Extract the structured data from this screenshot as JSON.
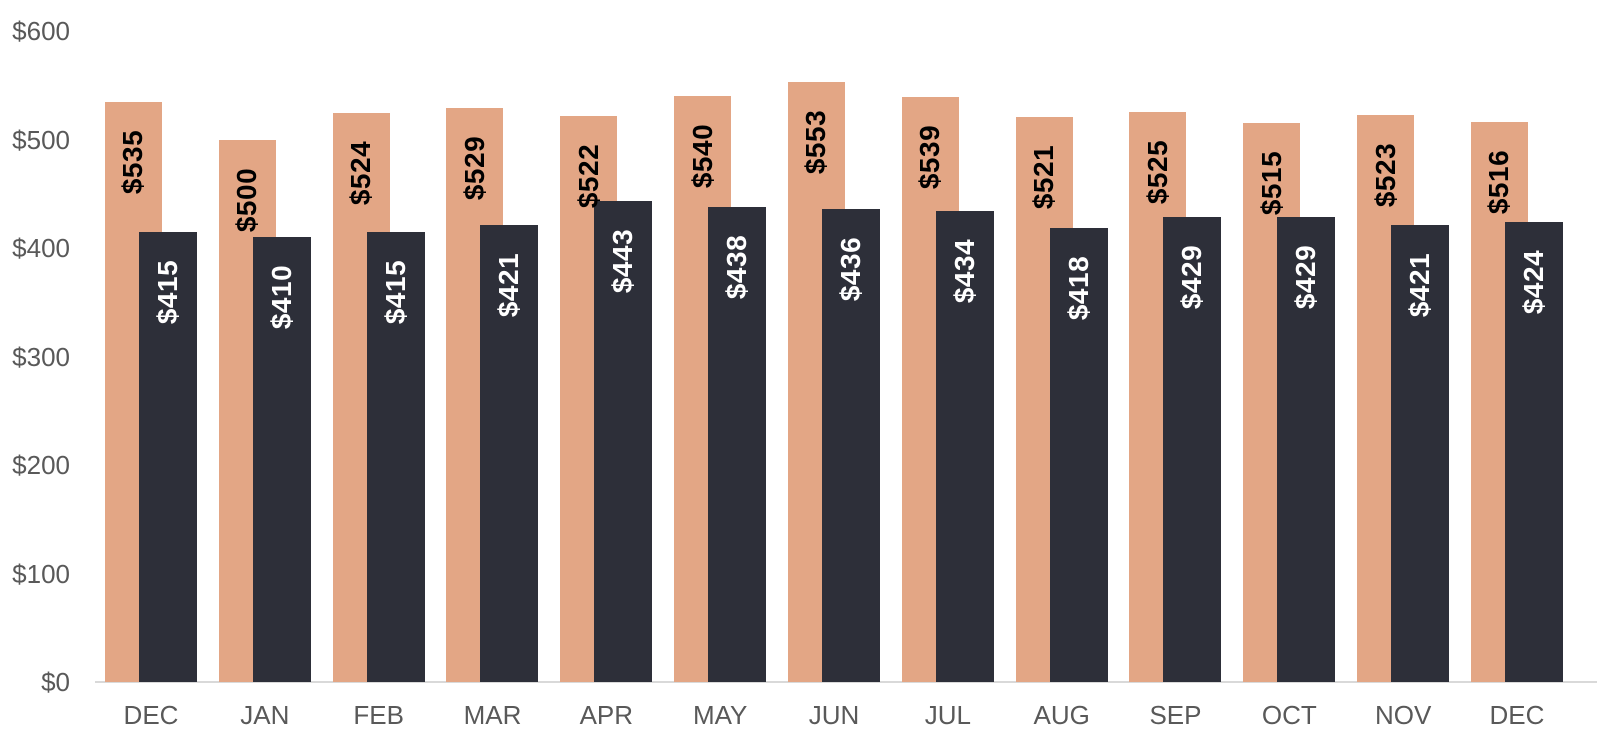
{
  "chart_data": {
    "type": "bar",
    "categories": [
      "DEC",
      "JAN",
      "FEB",
      "MAR",
      "APR",
      "MAY",
      "JUN",
      "JUL",
      "AUG",
      "SEP",
      "OCT",
      "NOV",
      "DEC"
    ],
    "series": [
      {
        "name": "orange-bars",
        "color": "#e3a685",
        "label_color": "#000000",
        "values": [
          535,
          500,
          524,
          529,
          522,
          540,
          553,
          539,
          521,
          525,
          515,
          523,
          516
        ]
      },
      {
        "name": "dark-bars",
        "color": "#2d2f39",
        "label_color": "#ffffff",
        "values": [
          415,
          410,
          415,
          421,
          443,
          438,
          436,
          434,
          418,
          429,
          429,
          421,
          424
        ]
      }
    ],
    "value_prefix": "$",
    "y_ticks": [
      0,
      100,
      200,
      300,
      400,
      500,
      600
    ],
    "tick_prefix": "$",
    "ylim": [
      0,
      600
    ],
    "xlabel": "",
    "ylabel": "",
    "title": "",
    "legend": "none",
    "grid": "off",
    "value_labels": "inside-end-rotated",
    "axis_text_color": "#595959",
    "baseline_color": "#d9d9d9",
    "background_color": "#ffffff"
  }
}
